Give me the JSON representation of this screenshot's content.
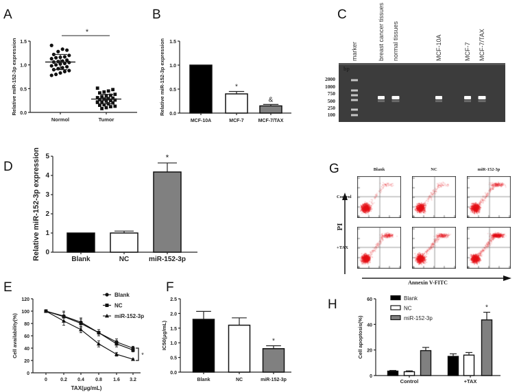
{
  "panel_letters": [
    "A",
    "B",
    "C",
    "D",
    "E",
    "F",
    "G",
    "H"
  ],
  "colors": {
    "black": "#000000",
    "white": "#ffffff",
    "gray": "#808080",
    "flow_red": "#e8141b",
    "gel_bg": "#3c3c3c"
  },
  "chart_data": [
    {
      "panel": "A",
      "type": "scatter",
      "ylabel": "Relative miR-152-3p expression",
      "categories": [
        "Normol",
        "Tumor"
      ],
      "yticks": [
        "0.0",
        "0.5",
        "1.0",
        "1.5"
      ],
      "ylim": [
        0,
        1.5
      ],
      "series": [
        {
          "category": "Normol",
          "marker": "circle",
          "mean": 1.06,
          "sd": 0.16,
          "values": [
            1.41,
            1.31,
            1.33,
            1.28,
            1.22,
            1.2,
            1.17,
            1.16,
            1.15,
            1.13,
            1.1,
            1.08,
            1.07,
            1.06,
            1.05,
            1.03,
            1.02,
            1.0,
            0.98,
            0.96,
            0.94,
            0.92,
            0.9,
            0.88,
            0.86,
            0.83,
            0.8,
            0.78
          ]
        },
        {
          "category": "Tumor",
          "marker": "square",
          "mean": 0.28,
          "sd": 0.1,
          "values": [
            0.51,
            0.48,
            0.45,
            0.43,
            0.41,
            0.38,
            0.36,
            0.35,
            0.33,
            0.31,
            0.3,
            0.29,
            0.28,
            0.27,
            0.26,
            0.25,
            0.24,
            0.22,
            0.21,
            0.2,
            0.18,
            0.16,
            0.15,
            0.13,
            0.12,
            0.1,
            0.08,
            0.22
          ]
        }
      ],
      "annotations": [
        "*"
      ]
    },
    {
      "panel": "B",
      "type": "bar",
      "ylabel": "Relative miR-152-3p expression",
      "categories": [
        "MCF-10A",
        "MCF-7",
        "MCF-7/TAX"
      ],
      "values": [
        1.0,
        0.4,
        0.15
      ],
      "errors": [
        0,
        0.05,
        0.03
      ],
      "fills": [
        "#000000",
        "#ffffff",
        "#808080"
      ],
      "annotations": [
        "",
        "*",
        "&"
      ],
      "yticks": [
        "0.0",
        "0.5",
        "1.0",
        "1.5"
      ],
      "ylim": [
        0,
        1.5
      ]
    },
    {
      "panel": "C",
      "type": "gel",
      "lane_labels": [
        "marker",
        "breast cancer tissues",
        "normal tissues",
        "MCF-10A",
        "MCF-7",
        "MCF-7/TAX"
      ],
      "bp_title": "bp",
      "bp_labels": [
        "2000",
        "1000",
        "750",
        "500",
        "250",
        "100"
      ]
    },
    {
      "panel": "D",
      "type": "bar",
      "ylabel": "Relative miR-152-3p expression",
      "categories": [
        "Blank",
        "NC",
        "miR-152-3p"
      ],
      "values": [
        1.0,
        1.0,
        4.18
      ],
      "errors": [
        0,
        0.1,
        0.47
      ],
      "fills": [
        "#000000",
        "#ffffff",
        "#808080"
      ],
      "annotations": [
        "",
        "",
        "*"
      ],
      "yticks": [
        "0",
        "1",
        "2",
        "3",
        "4",
        "5"
      ],
      "ylim": [
        0,
        5
      ]
    },
    {
      "panel": "E",
      "type": "line",
      "xlabel": "TAX(μg/mL)",
      "ylabel": "Cell availability(%)",
      "x": [
        "0",
        "0.2",
        "0.4",
        "0.8",
        "1.6",
        "3.2"
      ],
      "yticks": [
        "0",
        "20",
        "40",
        "60",
        "80",
        "100",
        "120"
      ],
      "ylim": [
        0,
        120
      ],
      "legend_position": "top-right",
      "series": [
        {
          "name": "Blank",
          "marker": "circle",
          "values": [
            100,
            92,
            82,
            65,
            50,
            40
          ],
          "errors": [
            0,
            8,
            7,
            5,
            5,
            3
          ]
        },
        {
          "name": "NC",
          "marker": "square",
          "values": [
            100,
            91,
            80,
            65,
            47,
            37
          ],
          "errors": [
            0,
            7,
            7,
            5,
            5,
            3
          ]
        },
        {
          "name": "miR-152-3p",
          "marker": "triangle",
          "values": [
            100,
            84,
            70,
            47,
            30,
            22
          ],
          "errors": [
            0,
            7,
            5,
            5,
            3,
            1
          ]
        }
      ],
      "annotations": [
        "*"
      ]
    },
    {
      "panel": "F",
      "type": "bar",
      "ylabel": "IC50(μg/mL)",
      "categories": [
        "Blank",
        "NC",
        "miR-152-3p"
      ],
      "values": [
        1.8,
        1.6,
        0.8
      ],
      "errors": [
        0.27,
        0.25,
        0.1
      ],
      "fills": [
        "#000000",
        "#ffffff",
        "#808080"
      ],
      "annotations": [
        "",
        "",
        "*"
      ],
      "yticks": [
        "0.0",
        "0.5",
        "1.0",
        "1.5",
        "2.0",
        "2.5"
      ],
      "ylim": [
        0,
        2.5
      ]
    },
    {
      "panel": "G",
      "type": "flow-cytometry",
      "columns": [
        "Blank",
        "NC",
        "miR-152-3p"
      ],
      "rows": [
        "Control",
        "+TAX"
      ],
      "xlabel": "Annexin V-FITC",
      "ylabel": "PI"
    },
    {
      "panel": "H",
      "type": "bar",
      "ylabel": "Cell apoptosis(%)",
      "categories": [
        "Control",
        "+TAX"
      ],
      "yticks": [
        "0",
        "20",
        "40",
        "60"
      ],
      "ylim": [
        0,
        60
      ],
      "legend_position": "top-left",
      "series": [
        {
          "name": "Blank",
          "fill": "#000000",
          "values": [
            3.5,
            15
          ],
          "errors": [
            0.5,
            2
          ]
        },
        {
          "name": "NC",
          "fill": "#ffffff",
          "values": [
            3,
            16
          ],
          "errors": [
            0.7,
            2
          ]
        },
        {
          "name": "miR-152-3p",
          "fill": "#808080",
          "values": [
            19.5,
            43.5
          ],
          "errors": [
            2.5,
            6
          ]
        }
      ],
      "annotations": [
        "*"
      ]
    }
  ]
}
